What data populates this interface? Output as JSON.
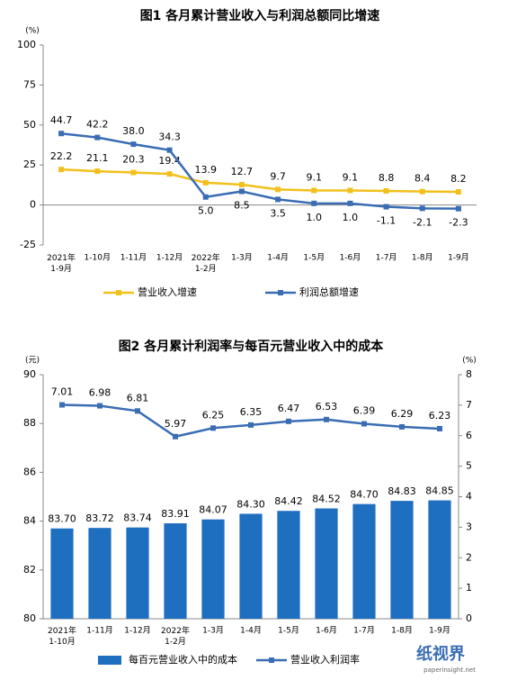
{
  "chart_data": [
    {
      "type": "line",
      "title": "图1  各月累计营业收入与利润总额同比增速",
      "unit": "(%)",
      "categories": [
        "2021年\n1-9月",
        "1-10月",
        "1-11月",
        "1-12月",
        "2022年\n1-2月",
        "1-3月",
        "1-4月",
        "1-5月",
        "1-6月",
        "1-7月",
        "1-8月",
        "1-9月"
      ],
      "series": [
        {
          "name": "营业收入增速",
          "color": "#f2c01c",
          "values": [
            22.2,
            21.1,
            20.3,
            19.4,
            13.9,
            12.7,
            9.7,
            9.1,
            9.1,
            8.8,
            8.4,
            8.2
          ],
          "value_labels": [
            "22.2",
            "21.1",
            "20.3",
            "19.4",
            "13.9",
            "12.7",
            "9.7",
            "9.1",
            "9.1",
            "8.8",
            "8.4",
            "8.2"
          ]
        },
        {
          "name": "利润总额增速",
          "color": "#3a6db3",
          "values": [
            44.7,
            42.2,
            38.0,
            34.3,
            5.0,
            8.5,
            3.5,
            1.0,
            1.0,
            -1.1,
            -2.1,
            -2.3
          ],
          "value_labels": [
            "44.7",
            "42.2",
            "38.0",
            "34.3",
            "5.0",
            "8.5",
            "3.5",
            "1.0",
            "1.0",
            "-1.1",
            "-2.1",
            "-2.3"
          ]
        }
      ],
      "ylim": [
        -25,
        100
      ],
      "yticks": [
        -25,
        0,
        25,
        50,
        75,
        100
      ]
    },
    {
      "type": "bar-line",
      "title": "图2  各月累计利润率与每百元营业收入中的成本",
      "unit": "(元)",
      "unit2": "(%)",
      "categories": [
        "2021年\n1-10月",
        "1-11月",
        "1-12月",
        "2022年\n1-2月",
        "1-3月",
        "1-4月",
        "1-5月",
        "1-6月",
        "1-7月",
        "1-8月",
        "1-9月"
      ],
      "series": [
        {
          "name": "每百元营业收入中的成本",
          "type": "bar",
          "color": "#1f6fc1",
          "values": [
            83.7,
            83.72,
            83.74,
            83.91,
            84.07,
            84.3,
            84.42,
            84.52,
            84.7,
            84.83,
            84.85
          ],
          "value_labels": [
            "83.70",
            "83.72",
            "83.74",
            "83.91",
            "84.07",
            "84.30",
            "84.42",
            "84.52",
            "84.70",
            "84.83",
            "84.85"
          ]
        },
        {
          "name": "营业收入利润率",
          "type": "line",
          "axis": "y2",
          "color": "#3a6db3",
          "values": [
            7.01,
            6.98,
            6.81,
            5.97,
            6.25,
            6.35,
            6.47,
            6.53,
            6.39,
            6.29,
            6.23
          ],
          "value_labels": [
            "7.01",
            "6.98",
            "6.81",
            "5.97",
            "6.25",
            "6.35",
            "6.47",
            "6.53",
            "6.39",
            "6.29",
            "6.23"
          ]
        }
      ],
      "ylim": [
        80,
        90
      ],
      "yticks": [
        80,
        82,
        84,
        86,
        88,
        90
      ],
      "y2lim": [
        0,
        8
      ],
      "y2ticks": [
        0,
        1,
        2,
        3,
        4,
        5,
        6,
        7,
        8
      ]
    }
  ],
  "watermark": "纸视界",
  "watermark_url": "paperinsight.net"
}
